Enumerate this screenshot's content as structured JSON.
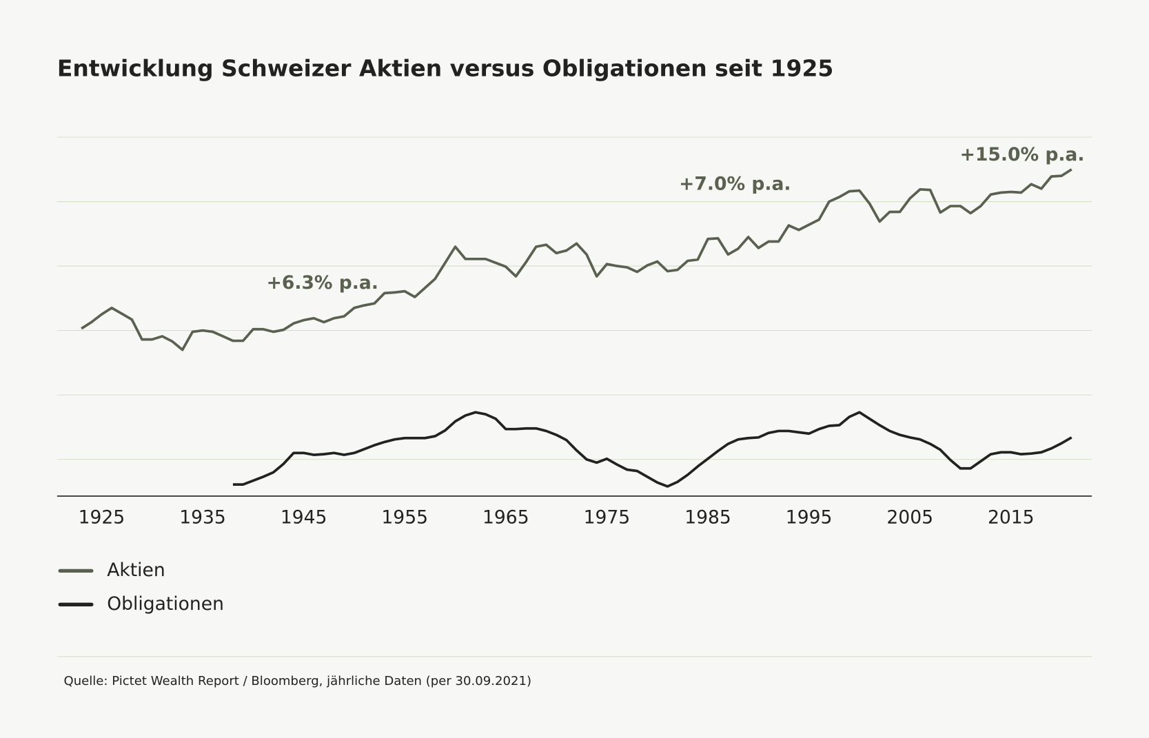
{
  "chart_data": {
    "type": "line",
    "title": "Entwicklung Schweizer Aktien versus Obligationen seit 1925",
    "source": "Quelle: Pictet Wealth Report / Bloomberg, jährliche Daten (per 30.09.2021)",
    "annotations": [
      "+6.3% p.a.",
      "+7.0% p.a.",
      "+15.0% p.a."
    ],
    "x": [
      1923,
      1924,
      1925,
      1926,
      1927,
      1928,
      1929,
      1930,
      1931,
      1932,
      1933,
      1934,
      1935,
      1936,
      1937,
      1938,
      1939,
      1940,
      1941,
      1942,
      1943,
      1944,
      1945,
      1946,
      1947,
      1948,
      1949,
      1950,
      1951,
      1952,
      1953,
      1954,
      1955,
      1956,
      1957,
      1958,
      1959,
      1960,
      1961,
      1962,
      1963,
      1964,
      1965,
      1966,
      1967,
      1968,
      1969,
      1970,
      1971,
      1972,
      1973,
      1974,
      1975,
      1976,
      1977,
      1978,
      1979,
      1980,
      1981,
      1982,
      1983,
      1984,
      1985,
      1986,
      1987,
      1988,
      1989,
      1990,
      1991,
      1992,
      1993,
      1994,
      1995,
      1996,
      1997,
      1998,
      1999,
      2000,
      2001,
      2002,
      2003,
      2004,
      2005,
      2006,
      2007,
      2008,
      2009,
      2010,
      2011,
      2012,
      2013,
      2014,
      2015,
      2016,
      2017,
      2018,
      2019,
      2020,
      2021
    ],
    "series": [
      {
        "name": "Aktien",
        "color": "#5a6150",
        "values": [
          2.03,
          2.13,
          2.25,
          2.35,
          2.26,
          2.17,
          1.86,
          1.86,
          1.91,
          1.83,
          1.7,
          1.98,
          2.0,
          1.98,
          1.91,
          1.84,
          1.84,
          2.02,
          2.02,
          1.98,
          2.01,
          2.11,
          2.16,
          2.19,
          2.13,
          2.19,
          2.22,
          2.35,
          2.39,
          2.42,
          2.58,
          2.59,
          2.61,
          2.52,
          2.66,
          2.8,
          3.05,
          3.3,
          3.11,
          3.11,
          3.11,
          3.05,
          2.99,
          2.84,
          3.06,
          3.3,
          3.33,
          3.2,
          3.24,
          3.35,
          3.18,
          2.84,
          3.03,
          3.0,
          2.98,
          2.91,
          3.01,
          3.07,
          2.92,
          2.94,
          3.08,
          3.1,
          3.42,
          3.43,
          3.18,
          3.27,
          3.45,
          3.28,
          3.38,
          3.38,
          3.63,
          3.56,
          3.64,
          3.72,
          4.0,
          4.07,
          4.16,
          4.17,
          3.97,
          3.69,
          3.84,
          3.84,
          4.05,
          4.19,
          4.18,
          3.83,
          3.93,
          3.93,
          3.82,
          3.93,
          4.11,
          4.14,
          4.15,
          4.14,
          4.27,
          4.2,
          4.39,
          4.4,
          4.5
        ]
      },
      {
        "name": "Obligationen",
        "color": "#22231e",
        "values": [
          null,
          null,
          null,
          null,
          null,
          null,
          null,
          null,
          null,
          null,
          null,
          null,
          null,
          null,
          null,
          -0.39,
          -0.39,
          -0.33,
          -0.27,
          -0.2,
          -0.07,
          0.1,
          0.1,
          0.07,
          0.08,
          0.1,
          0.07,
          0.1,
          0.16,
          0.22,
          0.27,
          0.31,
          0.33,
          0.33,
          0.33,
          0.36,
          0.45,
          0.59,
          0.68,
          0.73,
          0.7,
          0.63,
          0.47,
          0.47,
          0.48,
          0.48,
          0.44,
          0.38,
          0.3,
          0.14,
          0.0,
          -0.05,
          0.01,
          -0.08,
          -0.16,
          -0.18,
          -0.27,
          -0.36,
          -0.42,
          -0.35,
          -0.24,
          -0.11,
          0.01,
          0.13,
          0.24,
          0.31,
          0.33,
          0.34,
          0.41,
          0.44,
          0.44,
          0.42,
          0.4,
          0.47,
          0.52,
          0.53,
          0.66,
          0.73,
          0.63,
          0.53,
          0.44,
          0.38,
          0.34,
          0.31,
          0.24,
          0.15,
          -0.01,
          -0.14,
          -0.14,
          -0.03,
          0.08,
          0.11,
          0.11,
          0.08,
          0.09,
          0.11,
          0.17,
          0.25,
          0.34
        ]
      }
    ],
    "xlim": [
      1920.6,
      2023
    ],
    "xticks": [
      1925,
      1935,
      1945,
      1955,
      1965,
      1975,
      1985,
      1995,
      2005,
      2015
    ],
    "ylim": [
      -0.57,
      5
    ],
    "yticks": [
      0,
      1,
      2,
      3,
      4,
      5
    ],
    "grid": true,
    "legend": "bottom-left"
  }
}
